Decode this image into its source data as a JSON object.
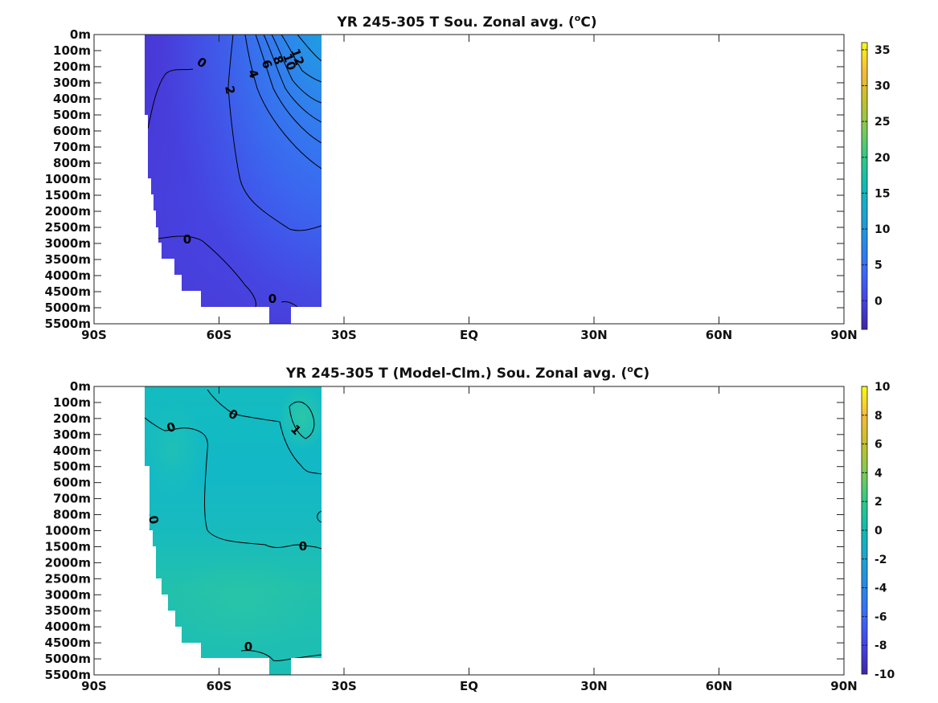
{
  "chart_data": [
    {
      "type": "heatmap",
      "title": "YR 245-305 T Sou. Zonal avg. (",
      "title_unit_sup": "o",
      "title_unit_end": "C)",
      "xlabel": "",
      "ylabel": "",
      "x_ticks": [
        "90S",
        "60S",
        "30S",
        "EQ",
        "30N",
        "60N",
        "90N"
      ],
      "y_ticks": [
        "0m",
        "100m",
        "200m",
        "300m",
        "400m",
        "500m",
        "600m",
        "700m",
        "800m",
        "1000m",
        "1500m",
        "2000m",
        "2500m",
        "3000m",
        "3500m",
        "4000m",
        "4500m",
        "5000m",
        "5500m"
      ],
      "xlim": [
        -90,
        90
      ],
      "colorbar": {
        "range": [
          -4,
          36
        ],
        "ticks": [
          "35",
          "30",
          "25",
          "20",
          "15",
          "10",
          "5",
          "0"
        ],
        "tick_values": [
          35,
          30,
          25,
          20,
          15,
          10,
          5,
          0
        ]
      },
      "colormap": "parula",
      "data_lat_range": [
        -78,
        -35
      ],
      "contour_labels": [
        "0",
        "2",
        "4",
        "6",
        "8",
        "10",
        "12",
        "0",
        "0"
      ],
      "field_description": "Temperature increasing from about -1 near Antarctica to about 13 at 35S near the surface"
    },
    {
      "type": "heatmap",
      "title": "YR 245-305 T (Model-Clm.) Sou. Zonal avg. (",
      "title_unit_sup": "o",
      "title_unit_end": "C)",
      "xlabel": "",
      "ylabel": "",
      "x_ticks": [
        "90S",
        "60S",
        "30S",
        "EQ",
        "30N",
        "60N",
        "90N"
      ],
      "y_ticks": [
        "0m",
        "100m",
        "200m",
        "300m",
        "400m",
        "500m",
        "600m",
        "700m",
        "800m",
        "1000m",
        "1500m",
        "2000m",
        "2500m",
        "3000m",
        "3500m",
        "4000m",
        "4500m",
        "5000m",
        "5500m"
      ],
      "xlim": [
        -90,
        90
      ],
      "colorbar": {
        "range": [
          -10,
          10
        ],
        "ticks": [
          "10",
          "8",
          "6",
          "4",
          "2",
          "0",
          "-2",
          "-4",
          "-6",
          "-8",
          "-10"
        ],
        "tick_values": [
          10,
          8,
          6,
          4,
          2,
          0,
          -2,
          -4,
          -6,
          -8,
          -10
        ]
      },
      "colormap": "parula",
      "data_lat_range": [
        -78,
        -35
      ],
      "contour_labels": [
        "0",
        "0",
        "1",
        "0",
        "0",
        "0"
      ],
      "field_description": "Model minus climatology anomaly between about -1 and 1.5"
    }
  ]
}
